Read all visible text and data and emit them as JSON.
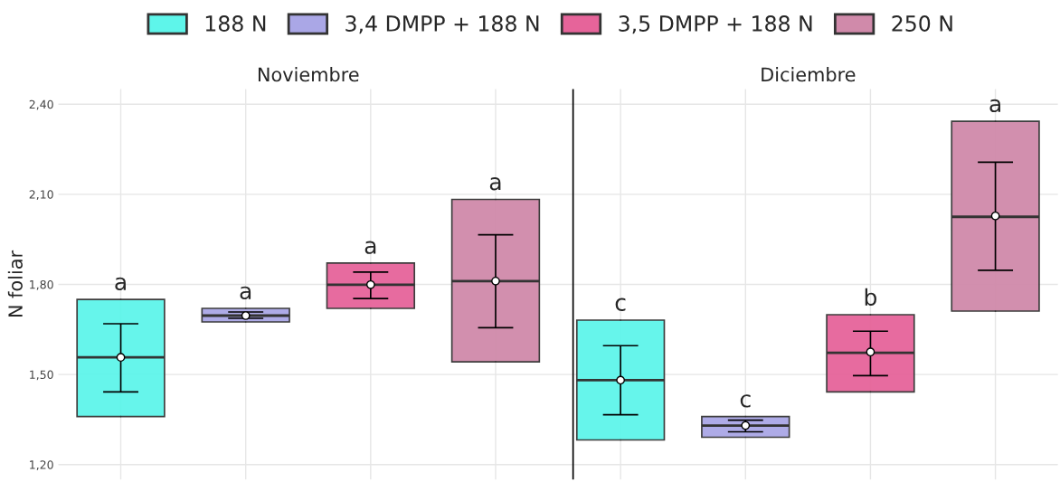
{
  "chart_data": {
    "type": "box",
    "ylabel": "N foliar",
    "categories": [
      null,
      null,
      null,
      null,
      null,
      null,
      null,
      null
    ],
    "ylim": [
      1.15,
      2.45
    ],
    "yticks": [
      {
        "value": 1.2,
        "label": "1,20"
      },
      {
        "value": 1.5,
        "label": "1,50"
      },
      {
        "value": 1.8,
        "label": "1,80"
      },
      {
        "value": 2.1,
        "label": "2,10"
      },
      {
        "value": 2.4,
        "label": "2,40"
      }
    ],
    "grid": true,
    "legend": "top",
    "tick_labels": "y",
    "series": [
      {
        "name": "188 N",
        "color": "#5ef5ea",
        "boxes": [
          {
            "low": 1.36,
            "q1": 1.36,
            "median": 1.557,
            "q3": 1.75,
            "high": 1.75
          },
          null,
          null,
          null,
          {
            "low": 1.282,
            "q1": 1.282,
            "median": 1.481,
            "q3": 1.681,
            "high": 1.681
          },
          null,
          null,
          null
        ]
      },
      {
        "name": "3,4 DMPP + 188 N",
        "color": "#aaa7e6",
        "boxes": [
          null,
          {
            "low": 1.675,
            "q1": 1.675,
            "median": 1.696,
            "q3": 1.72,
            "high": 1.72
          },
          null,
          null,
          null,
          {
            "low": 1.291,
            "q1": 1.291,
            "median": 1.33,
            "q3": 1.36,
            "high": 1.36
          },
          null,
          null
        ]
      },
      {
        "name": "3,5 DMPP + 188 N",
        "color": "#e6649a",
        "boxes": [
          null,
          null,
          {
            "low": 1.72,
            "q1": 1.72,
            "median": 1.799,
            "q3": 1.871,
            "high": 1.871
          },
          null,
          null,
          null,
          {
            "low": 1.442,
            "q1": 1.442,
            "median": 1.572,
            "q3": 1.699,
            "high": 1.699
          },
          null
        ]
      },
      {
        "name": "250 N",
        "color": "#d08aaa",
        "boxes": [
          null,
          null,
          null,
          {
            "low": 1.542,
            "q1": 1.542,
            "median": 1.811,
            "q3": 2.083,
            "high": 2.083
          },
          null,
          null,
          null,
          {
            "low": 1.711,
            "q1": 1.711,
            "median": 2.025,
            "q3": 2.343,
            "high": 2.343
          }
        ]
      },
      {
        "type": "scatter",
        "color": "#000000",
        "marker": "circle",
        "values": [
          1.557,
          1.696,
          1.799,
          1.811,
          1.481,
          1.33,
          1.575,
          2.028
        ],
        "errors": [
          [
            1.442,
            1.669
          ],
          [
            1.687,
            1.708
          ],
          [
            1.753,
            1.841
          ],
          [
            1.656,
            1.965
          ],
          [
            1.366,
            1.596
          ],
          [
            1.309,
            1.348
          ],
          [
            1.496,
            1.644
          ],
          [
            1.847,
            2.207
          ]
        ]
      }
    ],
    "annotations": [
      "a",
      "a",
      "a",
      "a",
      "c",
      "c",
      "b",
      "a",
      "Noviembre",
      "Diciembre"
    ]
  }
}
